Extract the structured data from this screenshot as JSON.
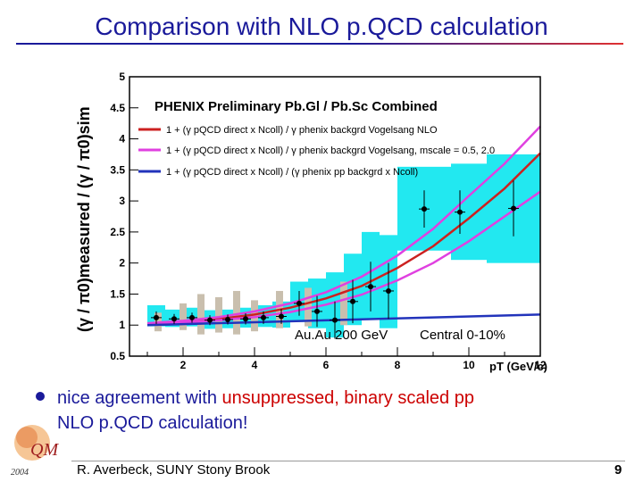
{
  "slide": {
    "title": "Comparison with NLO p.QCD calculation",
    "bullet_part1": "nice agreement with ",
    "bullet_part2": "unsuppressed, binary scaled pp",
    "bullet_part3": "NLO p.QCD calculation!",
    "author": "R. Averbeck, SUNY Stony Brook",
    "page_number": "9",
    "logo_year": "2004",
    "logo_mark": "QM"
  },
  "chart_data": {
    "type": "scatter",
    "title": "PHENIX Preliminary  Pb.Gl / Pb.Sc Combined",
    "xlabel": "pT (GeV/c)",
    "ylabel": "(γ / π0)measured / (γ / π0)sim",
    "xlim": [
      0.5,
      12
    ],
    "ylim": [
      0.5,
      5
    ],
    "x_ticks": [
      2,
      4,
      6,
      8,
      10,
      12
    ],
    "y_ticks": [
      0.5,
      1,
      1.5,
      2,
      2.5,
      3,
      3.5,
      4,
      4.5,
      5
    ],
    "annotation_system": "Au.Au 200 GeV",
    "annotation_centrality": "Central  0-10%",
    "legend": [
      {
        "label": "1 + (γ pQCD direct x Ncoll) / γ phenix backgrd  Vogelsang NLO",
        "color": "#cc2020"
      },
      {
        "label": "1 + (γ pQCD direct x Ncoll) / γ phenix backgrd  Vogelsang, mscale = 0.5, 2.0",
        "color": "#e040e0"
      },
      {
        "label": "1 + (γ pQCD direct x Ncoll) / (γ phenix pp backgrd x Ncoll)",
        "color": "#2233bb"
      }
    ],
    "points": [
      {
        "x": 1.25,
        "y": 1.12,
        "err": 0.1
      },
      {
        "x": 1.75,
        "y": 1.1,
        "err": 0.08
      },
      {
        "x": 2.25,
        "y": 1.12,
        "err": 0.08
      },
      {
        "x": 2.75,
        "y": 1.08,
        "err": 0.08
      },
      {
        "x": 3.25,
        "y": 1.09,
        "err": 0.08
      },
      {
        "x": 3.75,
        "y": 1.1,
        "err": 0.09
      },
      {
        "x": 4.25,
        "y": 1.12,
        "err": 0.1
      },
      {
        "x": 4.75,
        "y": 1.14,
        "err": 0.12
      },
      {
        "x": 5.25,
        "y": 1.35,
        "err": 0.2
      },
      {
        "x": 5.75,
        "y": 1.22,
        "err": 0.25
      },
      {
        "x": 6.25,
        "y": 1.08,
        "err": 0.3
      },
      {
        "x": 6.75,
        "y": 1.38,
        "err": 0.35
      },
      {
        "x": 7.25,
        "y": 1.62,
        "err": 0.4
      },
      {
        "x": 7.75,
        "y": 1.55,
        "err": 0.45
      },
      {
        "x": 8.75,
        "y": 2.87,
        "err": 0.3
      },
      {
        "x": 9.75,
        "y": 2.82,
        "err": 0.35
      },
      {
        "x": 11.25,
        "y": 2.88,
        "err": 0.45
      }
    ],
    "sys_band_cyan": [
      {
        "x0": 1.0,
        "x1": 1.5,
        "y0": 0.98,
        "y1": 1.32
      },
      {
        "x0": 1.5,
        "x1": 2.0,
        "y0": 0.97,
        "y1": 1.25
      },
      {
        "x0": 2.0,
        "x1": 2.5,
        "y0": 0.98,
        "y1": 1.28
      },
      {
        "x0": 2.5,
        "x1": 3.0,
        "y0": 0.94,
        "y1": 1.24
      },
      {
        "x0": 3.0,
        "x1": 3.5,
        "y0": 0.95,
        "y1": 1.25
      },
      {
        "x0": 3.5,
        "x1": 4.0,
        "y0": 0.96,
        "y1": 1.28
      },
      {
        "x0": 4.0,
        "x1": 4.5,
        "y0": 0.97,
        "y1": 1.32
      },
      {
        "x0": 4.5,
        "x1": 5.0,
        "y0": 0.96,
        "y1": 1.38
      },
      {
        "x0": 5.0,
        "x1": 5.5,
        "y0": 1.05,
        "y1": 1.7
      },
      {
        "x0": 5.5,
        "x1": 6.0,
        "y0": 0.95,
        "y1": 1.75
      },
      {
        "x0": 6.0,
        "x1": 6.5,
        "y0": 0.8,
        "y1": 1.85
      },
      {
        "x0": 6.5,
        "x1": 7.0,
        "y0": 1.0,
        "y1": 2.15
      },
      {
        "x0": 7.0,
        "x1": 7.5,
        "y0": 1.1,
        "y1": 2.5
      },
      {
        "x0": 7.5,
        "x1": 8.0,
        "y0": 0.95,
        "y1": 2.45
      },
      {
        "x0": 8.0,
        "x1": 9.5,
        "y0": 2.2,
        "y1": 3.55
      },
      {
        "x0": 9.5,
        "x1": 10.5,
        "y0": 2.05,
        "y1": 3.6
      },
      {
        "x0": 10.5,
        "x1": 12.0,
        "y0": 2.0,
        "y1": 3.75
      }
    ],
    "sys_band_gray": [
      {
        "x0": 1.2,
        "x1": 1.4,
        "y0": 0.9,
        "y1": 1.2
      },
      {
        "x0": 1.9,
        "x1": 2.1,
        "y0": 0.92,
        "y1": 1.35
      },
      {
        "x0": 2.4,
        "x1": 2.6,
        "y0": 0.85,
        "y1": 1.5
      },
      {
        "x0": 2.9,
        "x1": 3.1,
        "y0": 0.88,
        "y1": 1.45
      },
      {
        "x0": 3.4,
        "x1": 3.6,
        "y0": 0.85,
        "y1": 1.55
      },
      {
        "x0": 3.9,
        "x1": 4.1,
        "y0": 0.9,
        "y1": 1.4
      },
      {
        "x0": 4.6,
        "x1": 4.8,
        "y0": 0.95,
        "y1": 1.55
      },
      {
        "x0": 5.4,
        "x1": 5.6,
        "y0": 0.98,
        "y1": 1.6
      },
      {
        "x0": 6.4,
        "x1": 6.6,
        "y0": 1.0,
        "y1": 1.7
      }
    ],
    "curves": [
      {
        "name": "Vogelsang NLO",
        "color": "#cc2020",
        "x": [
          1,
          2,
          3,
          4,
          5,
          6,
          7,
          8,
          9,
          10,
          11,
          12
        ],
        "y": [
          1.02,
          1.05,
          1.1,
          1.17,
          1.28,
          1.43,
          1.63,
          1.92,
          2.27,
          2.72,
          3.2,
          3.77
        ]
      },
      {
        "name": "Vogelsang scale 0.5",
        "color": "#e040e0",
        "x": [
          1,
          2,
          3,
          4,
          5,
          6,
          7,
          8,
          9,
          10,
          11,
          12
        ],
        "y": [
          1.03,
          1.07,
          1.13,
          1.22,
          1.35,
          1.53,
          1.78,
          2.12,
          2.55,
          3.08,
          3.6,
          4.2
        ]
      },
      {
        "name": "Vogelsang scale 2.0",
        "color": "#e040e0",
        "x": [
          1,
          2,
          3,
          4,
          5,
          6,
          7,
          8,
          9,
          10,
          11,
          12
        ],
        "y": [
          1.01,
          1.04,
          1.08,
          1.13,
          1.21,
          1.33,
          1.49,
          1.72,
          2.0,
          2.35,
          2.75,
          3.15
        ]
      },
      {
        "name": "pp background scaled",
        "color": "#2233bb",
        "x": [
          1,
          12
        ],
        "y": [
          1.0,
          1.17
        ]
      }
    ]
  }
}
